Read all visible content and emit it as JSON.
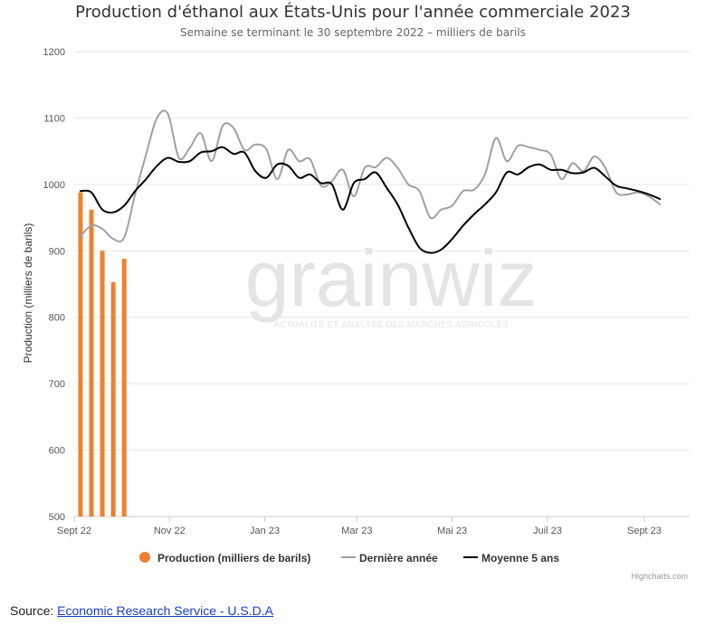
{
  "chart_data": {
    "type": "bar+line",
    "title": "Production d'éthanol aux États-Unis pour l'année commerciale 2023",
    "subtitle": "Semaine se terminant le 30 septembre 2022 – milliers de barils",
    "ylabel": "Production (milliers de barils)",
    "xlabel": "",
    "ylim": [
      500,
      1200
    ],
    "yticks": [
      500,
      600,
      700,
      800,
      900,
      1000,
      1100,
      1200
    ],
    "x_domain": [
      "2022-09-01",
      "2023-09-30"
    ],
    "xticks": [
      {
        "date": "2022-09-01",
        "label": "Sept 22"
      },
      {
        "date": "2022-11-01",
        "label": "Nov 22"
      },
      {
        "date": "2023-01-01",
        "label": "Jan 23"
      },
      {
        "date": "2023-03-01",
        "label": "Mar 23"
      },
      {
        "date": "2023-05-01",
        "label": "Mai 23"
      },
      {
        "date": "2023-07-01",
        "label": "Juil 23"
      },
      {
        "date": "2023-09-01",
        "label": "Sept 23"
      }
    ],
    "grid": true,
    "legend_position": "bottom",
    "series": [
      {
        "name": "Production (milliers de barils)",
        "type": "bar",
        "color": "#f0802f",
        "points": [
          {
            "x": "2022-09-05",
            "y": 988
          },
          {
            "x": "2022-09-12",
            "y": 962
          },
          {
            "x": "2022-09-19",
            "y": 900
          },
          {
            "x": "2022-09-26",
            "y": 853
          },
          {
            "x": "2022-10-03",
            "y": 888
          }
        ]
      },
      {
        "name": "Dernière année",
        "type": "line",
        "color": "#a0a0a0",
        "points": [
          {
            "x": "2022-09-05",
            "y": 922
          },
          {
            "x": "2022-09-12",
            "y": 938
          },
          {
            "x": "2022-09-19",
            "y": 933
          },
          {
            "x": "2022-09-26",
            "y": 918
          },
          {
            "x": "2022-10-03",
            "y": 920
          },
          {
            "x": "2022-10-10",
            "y": 985
          },
          {
            "x": "2022-10-17",
            "y": 1045
          },
          {
            "x": "2022-10-24",
            "y": 1100
          },
          {
            "x": "2022-10-31",
            "y": 1106
          },
          {
            "x": "2022-11-07",
            "y": 1040
          },
          {
            "x": "2022-11-14",
            "y": 1055
          },
          {
            "x": "2022-11-21",
            "y": 1077
          },
          {
            "x": "2022-11-28",
            "y": 1035
          },
          {
            "x": "2022-12-05",
            "y": 1088
          },
          {
            "x": "2022-12-12",
            "y": 1085
          },
          {
            "x": "2022-12-19",
            "y": 1052
          },
          {
            "x": "2022-12-26",
            "y": 1060
          },
          {
            "x": "2023-01-02",
            "y": 1053
          },
          {
            "x": "2023-01-09",
            "y": 1008
          },
          {
            "x": "2023-01-16",
            "y": 1052
          },
          {
            "x": "2023-01-23",
            "y": 1035
          },
          {
            "x": "2023-01-30",
            "y": 1038
          },
          {
            "x": "2023-02-06",
            "y": 998
          },
          {
            "x": "2023-02-13",
            "y": 1005
          },
          {
            "x": "2023-02-20",
            "y": 1022
          },
          {
            "x": "2023-02-27",
            "y": 982
          },
          {
            "x": "2023-03-06",
            "y": 1025
          },
          {
            "x": "2023-03-13",
            "y": 1026
          },
          {
            "x": "2023-03-20",
            "y": 1040
          },
          {
            "x": "2023-03-27",
            "y": 1025
          },
          {
            "x": "2023-04-03",
            "y": 1000
          },
          {
            "x": "2023-04-10",
            "y": 990
          },
          {
            "x": "2023-04-17",
            "y": 950
          },
          {
            "x": "2023-04-24",
            "y": 962
          },
          {
            "x": "2023-05-01",
            "y": 968
          },
          {
            "x": "2023-05-08",
            "y": 990
          },
          {
            "x": "2023-05-15",
            "y": 992
          },
          {
            "x": "2023-05-22",
            "y": 1015
          },
          {
            "x": "2023-05-29",
            "y": 1070
          },
          {
            "x": "2023-06-05",
            "y": 1035
          },
          {
            "x": "2023-06-12",
            "y": 1058
          },
          {
            "x": "2023-06-19",
            "y": 1056
          },
          {
            "x": "2023-06-26",
            "y": 1052
          },
          {
            "x": "2023-07-03",
            "y": 1045
          },
          {
            "x": "2023-07-10",
            "y": 1008
          },
          {
            "x": "2023-07-17",
            "y": 1032
          },
          {
            "x": "2023-07-24",
            "y": 1020
          },
          {
            "x": "2023-07-31",
            "y": 1042
          },
          {
            "x": "2023-08-07",
            "y": 1025
          },
          {
            "x": "2023-08-14",
            "y": 988
          },
          {
            "x": "2023-08-21",
            "y": 985
          },
          {
            "x": "2023-08-28",
            "y": 988
          },
          {
            "x": "2023-09-04",
            "y": 982
          },
          {
            "x": "2023-09-11",
            "y": 970
          }
        ]
      },
      {
        "name": "Moyenne 5 ans",
        "type": "line",
        "color": "#000000",
        "points": [
          {
            "x": "2022-09-05",
            "y": 990
          },
          {
            "x": "2022-09-12",
            "y": 988
          },
          {
            "x": "2022-09-19",
            "y": 962
          },
          {
            "x": "2022-09-26",
            "y": 958
          },
          {
            "x": "2022-10-03",
            "y": 968
          },
          {
            "x": "2022-10-10",
            "y": 990
          },
          {
            "x": "2022-10-17",
            "y": 1008
          },
          {
            "x": "2022-10-24",
            "y": 1028
          },
          {
            "x": "2022-10-31",
            "y": 1040
          },
          {
            "x": "2022-11-07",
            "y": 1034
          },
          {
            "x": "2022-11-14",
            "y": 1035
          },
          {
            "x": "2022-11-21",
            "y": 1048
          },
          {
            "x": "2022-11-28",
            "y": 1050
          },
          {
            "x": "2022-12-05",
            "y": 1056
          },
          {
            "x": "2022-12-12",
            "y": 1046
          },
          {
            "x": "2022-12-19",
            "y": 1048
          },
          {
            "x": "2022-12-26",
            "y": 1020
          },
          {
            "x": "2023-01-02",
            "y": 1010
          },
          {
            "x": "2023-01-09",
            "y": 1030
          },
          {
            "x": "2023-01-16",
            "y": 1028
          },
          {
            "x": "2023-01-23",
            "y": 1010
          },
          {
            "x": "2023-01-30",
            "y": 1015
          },
          {
            "x": "2023-02-06",
            "y": 1002
          },
          {
            "x": "2023-02-13",
            "y": 1000
          },
          {
            "x": "2023-02-20",
            "y": 962
          },
          {
            "x": "2023-02-27",
            "y": 1002
          },
          {
            "x": "2023-03-06",
            "y": 1008
          },
          {
            "x": "2023-03-13",
            "y": 1018
          },
          {
            "x": "2023-03-20",
            "y": 995
          },
          {
            "x": "2023-03-27",
            "y": 970
          },
          {
            "x": "2023-04-03",
            "y": 935
          },
          {
            "x": "2023-04-10",
            "y": 905
          },
          {
            "x": "2023-04-17",
            "y": 897
          },
          {
            "x": "2023-04-24",
            "y": 902
          },
          {
            "x": "2023-05-01",
            "y": 918
          },
          {
            "x": "2023-05-08",
            "y": 938
          },
          {
            "x": "2023-05-15",
            "y": 955
          },
          {
            "x": "2023-05-22",
            "y": 970
          },
          {
            "x": "2023-05-29",
            "y": 988
          },
          {
            "x": "2023-06-05",
            "y": 1018
          },
          {
            "x": "2023-06-12",
            "y": 1015
          },
          {
            "x": "2023-06-19",
            "y": 1026
          },
          {
            "x": "2023-06-26",
            "y": 1030
          },
          {
            "x": "2023-07-03",
            "y": 1022
          },
          {
            "x": "2023-07-10",
            "y": 1022
          },
          {
            "x": "2023-07-17",
            "y": 1017
          },
          {
            "x": "2023-07-24",
            "y": 1018
          },
          {
            "x": "2023-07-31",
            "y": 1025
          },
          {
            "x": "2023-08-07",
            "y": 1012
          },
          {
            "x": "2023-08-14",
            "y": 998
          },
          {
            "x": "2023-08-21",
            "y": 994
          },
          {
            "x": "2023-08-28",
            "y": 990
          },
          {
            "x": "2023-09-04",
            "y": 985
          },
          {
            "x": "2023-09-11",
            "y": 978
          }
        ]
      }
    ],
    "watermark": {
      "logo_text": "grainwiz",
      "tagline": "ACTUALITÉ ET ANALYSE DES MARCHÉS AGRICOLES"
    },
    "credits": "Highcharts.com"
  },
  "source": {
    "label": "Source:",
    "link_text": "Economic Research Service - U.S.D.A"
  }
}
